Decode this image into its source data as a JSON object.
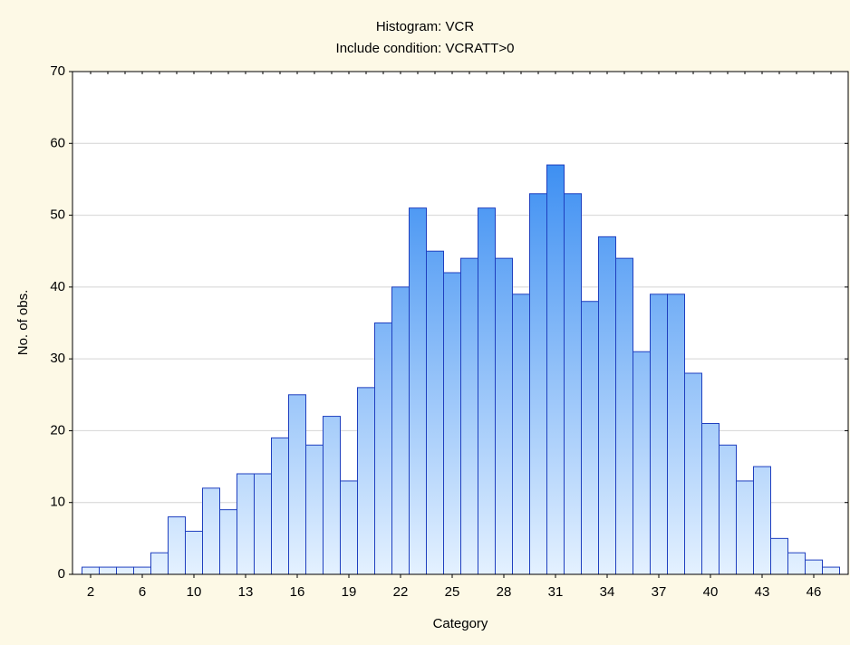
{
  "chart_data": {
    "type": "bar",
    "title": "Histogram: VCR",
    "subtitle": "Include condition: VCRATT>0",
    "xlabel": "Category",
    "ylabel": "No. of obs.",
    "categories": [
      "2",
      null,
      null,
      "6",
      null,
      null,
      "10",
      null,
      null,
      "13",
      null,
      null,
      "16",
      null,
      null,
      "19",
      null,
      null,
      "22",
      null,
      null,
      "25",
      null,
      null,
      "28",
      null,
      null,
      "31",
      null,
      null,
      "34",
      null,
      null,
      "37",
      null,
      null,
      "40",
      null,
      null,
      "43",
      null,
      null,
      "46",
      null
    ],
    "values": [
      1,
      1,
      1,
      1,
      3,
      8,
      6,
      12,
      9,
      14,
      14,
      19,
      25,
      18,
      22,
      13,
      26,
      35,
      40,
      51,
      45,
      42,
      44,
      51,
      44,
      39,
      53,
      57,
      53,
      38,
      47,
      44,
      31,
      39,
      39,
      28,
      21,
      18,
      13,
      15,
      5,
      3,
      2,
      1
    ],
    "color": "#3d8ff2",
    "ylim": [
      0,
      70
    ],
    "yticks": [
      0,
      10,
      20,
      30,
      40,
      50,
      60,
      70
    ],
    "grid": true
  }
}
